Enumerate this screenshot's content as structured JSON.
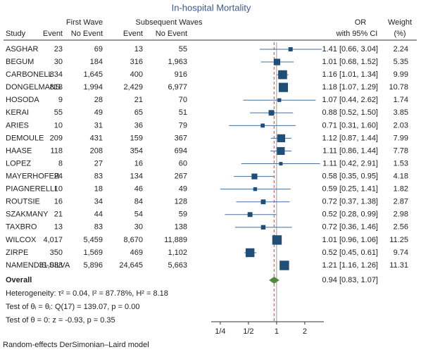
{
  "chart_data": {
    "type": "forest",
    "title": "In-hospital Mortality",
    "group_headers": [
      "First Wave",
      "Subsequent Waves"
    ],
    "column_headers": [
      "Study",
      "Event",
      "No Event",
      "Event",
      "No Event"
    ],
    "or_header": [
      "OR",
      "with 95% CI"
    ],
    "weight_header": [
      "Weight",
      "(%)"
    ],
    "studies": [
      {
        "name": "ASGHAR",
        "cells": [
          "23",
          "69",
          "13",
          "55"
        ],
        "or": 1.41,
        "lo": 0.66,
        "hi": 3.04,
        "ci_label": "1.41 [0.66, 3.04]",
        "weight": 2.24
      },
      {
        "name": "BEGUM",
        "cells": [
          "30",
          "184",
          "316",
          "1,963"
        ],
        "or": 1.01,
        "lo": 0.68,
        "hi": 1.52,
        "ci_label": "1.01 [0.68, 1.52]",
        "weight": 5.35
      },
      {
        "name": "CARBONELL",
        "cells": [
          "834",
          "1,645",
          "400",
          "916"
        ],
        "or": 1.16,
        "lo": 1.01,
        "hi": 1.34,
        "ci_label": "1.16 [1.01, 1.34]",
        "weight": 9.99
      },
      {
        "name": "DONGELMANS",
        "cells": [
          "818",
          "1,994",
          "2,429",
          "6,977"
        ],
        "or": 1.18,
        "lo": 1.07,
        "hi": 1.29,
        "ci_label": "1.18 [1.07, 1.29]",
        "weight": 10.78
      },
      {
        "name": "HOSODA",
        "cells": [
          "9",
          "28",
          "21",
          "70"
        ],
        "or": 1.07,
        "lo": 0.44,
        "hi": 2.62,
        "ci_label": "1.07 [0.44, 2.62]",
        "weight": 1.74
      },
      {
        "name": "KERAI",
        "cells": [
          "55",
          "49",
          "65",
          "51"
        ],
        "or": 0.88,
        "lo": 0.52,
        "hi": 1.5,
        "ci_label": "0.88 [0.52, 1.50]",
        "weight": 3.85
      },
      {
        "name": "ARIES",
        "cells": [
          "10",
          "31",
          "36",
          "79"
        ],
        "or": 0.71,
        "lo": 0.31,
        "hi": 1.6,
        "ci_label": "0.71 [0.31, 1.60]",
        "weight": 2.03
      },
      {
        "name": "DEMOULE",
        "cells": [
          "209",
          "431",
          "159",
          "367"
        ],
        "or": 1.12,
        "lo": 0.87,
        "hi": 1.44,
        "ci_label": "1.12 [0.87, 1.44]",
        "weight": 7.99
      },
      {
        "name": "HAASE",
        "cells": [
          "118",
          "208",
          "354",
          "694"
        ],
        "or": 1.11,
        "lo": 0.86,
        "hi": 1.44,
        "ci_label": "1.11 [0.86, 1.44]",
        "weight": 7.78
      },
      {
        "name": "LOPEZ",
        "cells": [
          "8",
          "27",
          "16",
          "60"
        ],
        "or": 1.11,
        "lo": 0.42,
        "hi": 2.91,
        "ci_label": "1.11 [0.42, 2.91]",
        "weight": 1.53
      },
      {
        "name": "MAYERHOFER",
        "cells": [
          "24",
          "83",
          "134",
          "267"
        ],
        "or": 0.58,
        "lo": 0.35,
        "hi": 0.95,
        "ci_label": "0.58 [0.35, 0.95]",
        "weight": 4.18
      },
      {
        "name": "PIAGNERELLI",
        "cells": [
          "10",
          "18",
          "46",
          "49"
        ],
        "or": 0.59,
        "lo": 0.25,
        "hi": 1.41,
        "ci_label": "0.59 [0.25, 1.41]",
        "weight": 1.82
      },
      {
        "name": "ROUTSIE",
        "cells": [
          "16",
          "34",
          "84",
          "128"
        ],
        "or": 0.72,
        "lo": 0.37,
        "hi": 1.38,
        "ci_label": "0.72 [0.37, 1.38]",
        "weight": 2.87
      },
      {
        "name": "SZAKMANY",
        "cells": [
          "21",
          "44",
          "54",
          "59"
        ],
        "or": 0.52,
        "lo": 0.28,
        "hi": 0.99,
        "ci_label": "0.52 [0.28, 0.99]",
        "weight": 2.98
      },
      {
        "name": "TAXBRO",
        "cells": [
          "13",
          "83",
          "30",
          "138"
        ],
        "or": 0.72,
        "lo": 0.36,
        "hi": 1.46,
        "ci_label": "0.72 [0.36, 1.46]",
        "weight": 2.56
      },
      {
        "name": "WILCOX",
        "cells": [
          "4,017",
          "5,459",
          "8,670",
          "11,889"
        ],
        "or": 1.01,
        "lo": 0.96,
        "hi": 1.06,
        "ci_label": "1.01 [0.96, 1.06]",
        "weight": 11.25
      },
      {
        "name": "ZIRPE",
        "cells": [
          "350",
          "1,569",
          "469",
          "1,102"
        ],
        "or": 0.52,
        "lo": 0.45,
        "hi": 0.61,
        "ci_label": "0.52 [0.45, 0.61]",
        "weight": 9.74
      },
      {
        "name": "NAMENDIS-SILVA",
        "cells": [
          "31,038",
          "5,896",
          "24,645",
          "5,663"
        ],
        "or": 1.21,
        "lo": 1.16,
        "hi": 1.26,
        "ci_label": "1.21 [1.16, 1.26]",
        "weight": 11.31
      }
    ],
    "overall": {
      "name": "Overall",
      "or": 0.94,
      "lo": 0.83,
      "hi": 1.07,
      "ci_label": "0.94 [0.83, 1.07]",
      "color": "#4e8a3a"
    },
    "notes": [
      "Heterogeneity: τ² = 0.04, I² = 87.78%, H² = 8.18",
      "Test of θᵢ = θⱼ: Q(17) = 139.07, p = 0.00",
      "Test of θ = 0: z = -0.93, p = 0.35"
    ],
    "footer": "Random-effects DerSimonian–Laird model",
    "log_scale": true,
    "xlim": [
      0.2,
      3.2
    ],
    "xticks": [
      {
        "value": 0.25,
        "label": "1/4"
      },
      {
        "value": 0.5,
        "label": "1/2"
      },
      1,
      2
    ],
    "marker_color": "#1f4e79",
    "ci_color": "#4a6e96",
    "overall_line_color": "#d04040",
    "null_line_color": "#999999"
  }
}
